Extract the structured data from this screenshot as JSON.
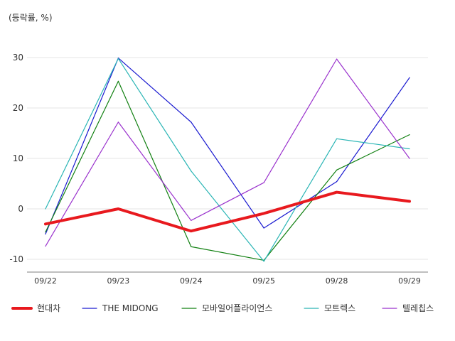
{
  "chart_data": {
    "type": "line",
    "unit_label": "(등락률, %)",
    "categories": [
      "09/22",
      "09/23",
      "09/24",
      "09/25",
      "09/28",
      "09/29"
    ],
    "ylim": [
      -10,
      30
    ],
    "yticks": [
      30,
      20,
      10,
      0,
      -10
    ],
    "grid": true,
    "legend_position": "bottom",
    "series": [
      {
        "name": "현대차",
        "color": "#e8191e",
        "width": 4,
        "values": [
          -3.0,
          0.0,
          -4.4,
          -0.9,
          3.3,
          1.5
        ]
      },
      {
        "name": "THE MIDONG",
        "color": "#1a1ad0",
        "width": 1.2,
        "values": [
          -5.0,
          29.9,
          17.2,
          -3.8,
          5.4,
          26.0
        ]
      },
      {
        "name": "모바일어플라이언스",
        "color": "#118011",
        "width": 1.2,
        "values": [
          -4.6,
          25.3,
          -7.5,
          -10.2,
          7.7,
          14.7
        ]
      },
      {
        "name": "모트렉스",
        "color": "#2ab5b5",
        "width": 1.2,
        "values": [
          0.0,
          29.8,
          7.5,
          -10.4,
          13.9,
          11.9
        ]
      },
      {
        "name": "텔레칩스",
        "color": "#9a32cd",
        "width": 1.2,
        "values": [
          -7.4,
          17.2,
          -2.3,
          5.2,
          29.7,
          10.0
        ]
      }
    ]
  }
}
